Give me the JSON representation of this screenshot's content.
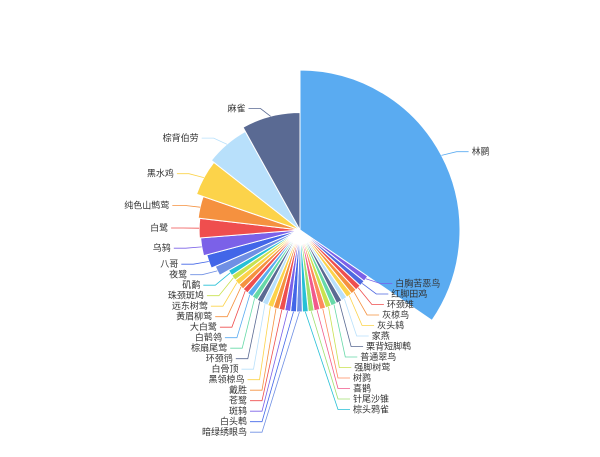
{
  "chart_data": {
    "type": "pie",
    "title": "",
    "slices": [
      {
        "name": "林鹂",
        "value": 30,
        "color": "#5aabf1"
      },
      {
        "name": "白胸苦恶鸟",
        "value": 1.0,
        "color": "#7b61e8"
      },
      {
        "name": "红脚田鸡",
        "value": 1.0,
        "color": "#4f68e0"
      },
      {
        "name": "环颈雉",
        "value": 1.0,
        "color": "#ef4e4e"
      },
      {
        "name": "灰椋鸟",
        "value": 1.0,
        "color": "#f5913f"
      },
      {
        "name": "灰头鸫",
        "value": 1.0,
        "color": "#fcd34a"
      },
      {
        "name": "家燕",
        "value": 1.0,
        "color": "#b8e0fb"
      },
      {
        "name": "栗背短脚鹎",
        "value": 1.0,
        "color": "#5a6a93"
      },
      {
        "name": "普通翠鸟",
        "value": 1.0,
        "color": "#66d9a8"
      },
      {
        "name": "强脚树莺",
        "value": 1.0,
        "color": "#c9e24f"
      },
      {
        "name": "树鹨",
        "value": 1.0,
        "color": "#ff8a5c"
      },
      {
        "name": "喜鹊",
        "value": 1.0,
        "color": "#f15a8c"
      },
      {
        "name": "针尾沙锥",
        "value": 1.0,
        "color": "#a1e070"
      },
      {
        "name": "棕头鸦雀",
        "value": 1.0,
        "color": "#26c0d6"
      },
      {
        "name": "暗绿绣眼鸟",
        "value": 1.0,
        "color": "#6f8fe4"
      },
      {
        "name": "白头鹎",
        "value": 1.0,
        "color": "#4266e8"
      },
      {
        "name": "斑鸫",
        "value": 1.0,
        "color": "#7b61e8"
      },
      {
        "name": "苍鹭",
        "value": 1.0,
        "color": "#ef4e4e"
      },
      {
        "name": "戴胜",
        "value": 1.0,
        "color": "#f5913f"
      },
      {
        "name": "黑领椋鸟",
        "value": 1.0,
        "color": "#fcd34a"
      },
      {
        "name": "白骨顶",
        "value": 1.0,
        "color": "#b8e0fb"
      },
      {
        "name": "环颈鸻",
        "value": 1.0,
        "color": "#5a6a93"
      },
      {
        "name": "棕扇尾莺",
        "value": 1.0,
        "color": "#66d9a8"
      },
      {
        "name": "白鹡鸰",
        "value": 1.0,
        "color": "#5aabf1"
      },
      {
        "name": "大白鹭",
        "value": 1.0,
        "color": "#ef4e4e"
      },
      {
        "name": "黄眉柳莺",
        "value": 1.0,
        "color": "#f5913f"
      },
      {
        "name": "远东树莺",
        "value": 1.0,
        "color": "#fcd34a"
      },
      {
        "name": "珠颈斑鸠",
        "value": 1.0,
        "color": "#c9e24f"
      },
      {
        "name": "矶鹬",
        "value": 1.0,
        "color": "#26c0d6"
      },
      {
        "name": "夜鹭",
        "value": 1.5,
        "color": "#6f8fe4"
      },
      {
        "name": "八哥",
        "value": 2.0,
        "color": "#4266e8"
      },
      {
        "name": "乌鸫",
        "value": 2.5,
        "color": "#7b61e8"
      },
      {
        "name": "白鹭",
        "value": 2.7,
        "color": "#ef4e4e"
      },
      {
        "name": "纯色山鹪莺",
        "value": 3.0,
        "color": "#f5913f"
      },
      {
        "name": "黑水鸡",
        "value": 4.6,
        "color": "#fcd34a"
      },
      {
        "name": "棕背伯劳",
        "value": 5.5,
        "color": "#b8e0fb"
      },
      {
        "name": "麻雀",
        "value": 7.0,
        "color": "#5a6a93"
      }
    ]
  }
}
